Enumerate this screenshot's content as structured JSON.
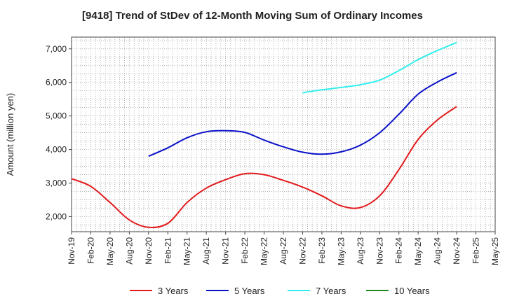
{
  "chart_data": {
    "type": "line",
    "title": "[9418]  Trend of StDev of 12-Month Moving Sum of Ordinary Incomes",
    "ylabel": "Amount (million yen)",
    "xlabel": "",
    "ylim": [
      1550,
      7350
    ],
    "yticks": [
      2000,
      3000,
      4000,
      5000,
      6000,
      7000
    ],
    "ytick_labels": [
      "2,000",
      "3,000",
      "4,000",
      "5,000",
      "6,000",
      "7,000"
    ],
    "x_ticks": [
      "Nov-19",
      "Feb-20",
      "May-20",
      "Aug-20",
      "Nov-20",
      "Feb-21",
      "May-21",
      "Aug-21",
      "Nov-21",
      "Feb-22",
      "May-22",
      "Aug-22",
      "Nov-22",
      "Feb-23",
      "May-23",
      "Aug-23",
      "Nov-23",
      "Feb-24",
      "May-24",
      "Aug-24",
      "Nov-24",
      "Feb-25",
      "May-25"
    ],
    "grid": true,
    "legend_position": "bottom",
    "series": [
      {
        "name": "3 Years",
        "color": "#e31a1c",
        "values": [
          3130,
          2900,
          2420,
          1900,
          1680,
          1800,
          2420,
          2850,
          3100,
          3280,
          3250,
          3080,
          2880,
          2620,
          2320,
          2270,
          2620,
          3400,
          4300,
          4880,
          5280,
          null,
          null
        ]
      },
      {
        "name": "5 Years",
        "color": "#0a12c8",
        "values": [
          null,
          null,
          null,
          null,
          3800,
          4050,
          4350,
          4530,
          4560,
          4510,
          4280,
          4080,
          3920,
          3860,
          3930,
          4130,
          4500,
          5050,
          5650,
          6010,
          6290,
          null,
          null
        ]
      },
      {
        "name": "7 Years",
        "color": "#33eeee",
        "values": [
          null,
          null,
          null,
          null,
          null,
          null,
          null,
          null,
          null,
          null,
          null,
          null,
          5690,
          5780,
          5850,
          5930,
          6070,
          6350,
          6680,
          6950,
          7190,
          null,
          null
        ]
      },
      {
        "name": "10 Years",
        "color": "#228b22",
        "values": [
          null,
          null,
          null,
          null,
          null,
          null,
          null,
          null,
          null,
          null,
          null,
          null,
          null,
          null,
          null,
          null,
          null,
          null,
          null,
          null,
          null,
          null,
          null
        ]
      }
    ]
  }
}
